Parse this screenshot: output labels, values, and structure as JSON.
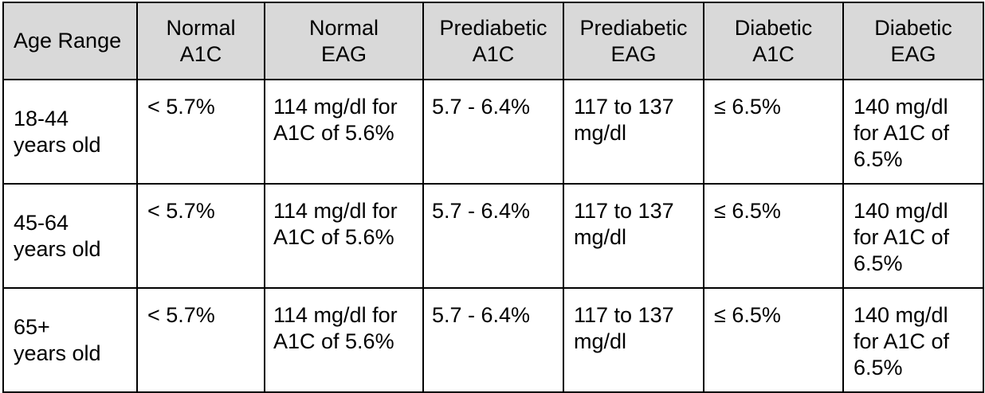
{
  "table": {
    "headers": [
      "Age Range",
      "Normal A1C",
      "Normal EAG",
      "Prediabetic A1C",
      "Prediabetic EAG",
      "Diabetic A1C",
      "Diabetic EAG"
    ],
    "rows": [
      [
        "18-44 years old",
        "< 5.7%",
        "114 mg/dl for A1C of 5.6%",
        "5.7 - 6.4%",
        "117 to 137 mg/dl",
        "≤ 6.5%",
        "140 mg/dl for A1C of 6.5%"
      ],
      [
        "45-64 years old",
        "< 5.7%",
        "114 mg/dl for A1C of 5.6%",
        "5.7 - 6.4%",
        "117 to 137 mg/dl",
        "≤ 6.5%",
        "140 mg/dl for A1C of 6.5%"
      ],
      [
        "65+ years old",
        "< 5.7%",
        "114 mg/dl for A1C of 5.6%",
        "5.7 - 6.4%",
        "117 to 137 mg/dl",
        "≤ 6.5%",
        "140 mg/dl for A1C of 6.5%"
      ]
    ]
  },
  "colors": {
    "header_background": "#d9d9d9",
    "border": "#000000",
    "text": "#000000"
  }
}
